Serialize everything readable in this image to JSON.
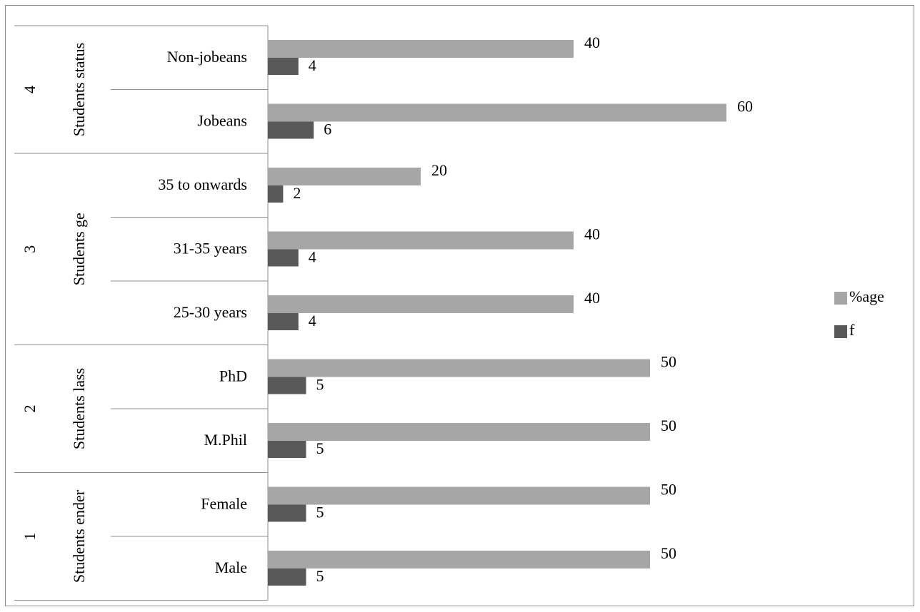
{
  "chart_data": {
    "type": "bar",
    "orientation": "horizontal",
    "groups": [
      {
        "number": "4",
        "name": "Students status",
        "categories": [
          "Non-jobeans",
          "Jobeans"
        ]
      },
      {
        "number": "3",
        "name": "Students ge",
        "categories": [
          "35 to onwards",
          "31-35 years",
          "25-30 years"
        ]
      },
      {
        "number": "2",
        "name": "Students lass",
        "categories": [
          "PhD",
          "M.Phil"
        ]
      },
      {
        "number": "1",
        "name": "Students ender",
        "categories": [
          "Female",
          "Male"
        ]
      }
    ],
    "categories": [
      "Non-jobeans",
      "Jobeans",
      "35 to onwards",
      "31-35 years",
      "25-30 years",
      "PhD",
      "M.Phil",
      "Female",
      "Male"
    ],
    "series": [
      {
        "name": "%age",
        "color": "#a6a6a6",
        "values": [
          40,
          60,
          20,
          40,
          40,
          50,
          50,
          50,
          50
        ]
      },
      {
        "name": "f",
        "color": "#595959",
        "values": [
          4,
          6,
          2,
          4,
          4,
          5,
          5,
          5,
          5
        ]
      }
    ],
    "xlim": [
      0,
      100
    ],
    "grid": false,
    "legend_position": "right",
    "data_labels": true
  }
}
